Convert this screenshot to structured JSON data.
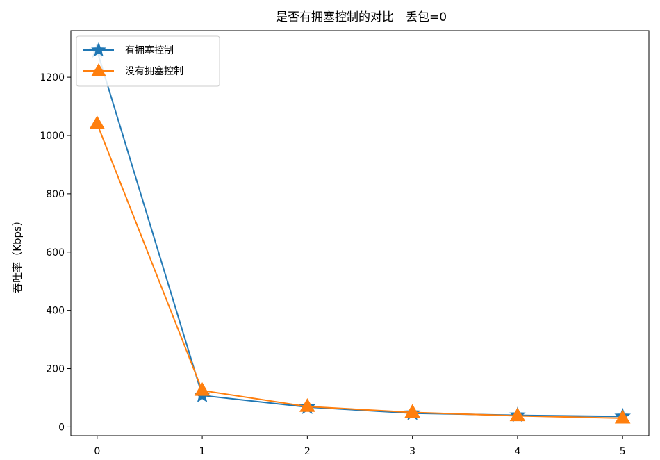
{
  "chart_data": {
    "type": "line",
    "title": "是否有拥塞控制的对比　丢包=0",
    "xlabel": "",
    "ylabel": "吞吐率（Kbps）",
    "x": [
      0,
      1,
      2,
      3,
      4,
      5
    ],
    "xticks": [
      "0",
      "1",
      "2",
      "3",
      "4",
      "5"
    ],
    "yticks": [
      "0",
      "200",
      "400",
      "600",
      "800",
      "1000",
      "1200"
    ],
    "xlim": [
      -0.25,
      5.25
    ],
    "ylim": [
      -30,
      1360
    ],
    "grid": false,
    "legend_position": "top-left",
    "series": [
      {
        "name": "有拥塞控制",
        "marker": "star",
        "color": "#1f77b4",
        "values": [
          1290,
          108,
          68,
          47,
          40,
          36
        ]
      },
      {
        "name": "没有拥塞控制",
        "marker": "triangle",
        "color": "#ff7f0e",
        "values": [
          1040,
          125,
          70,
          50,
          38,
          30
        ]
      }
    ]
  }
}
